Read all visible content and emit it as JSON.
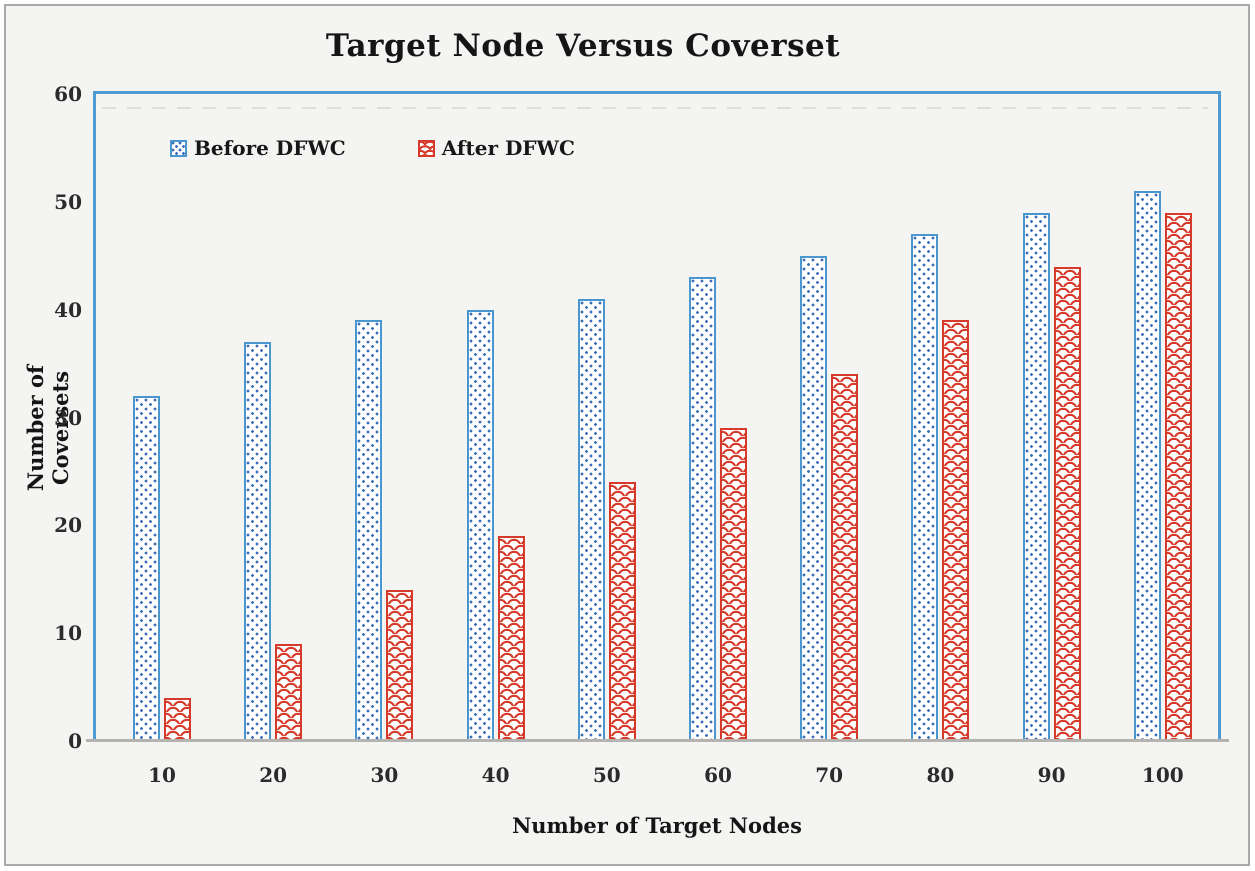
{
  "title": "Target Node Versus Coverset",
  "chart_data": {
    "type": "bar",
    "title": "Target Node Versus Coverset",
    "xlabel": "Number of Target Nodes",
    "ylabel": "Number of Coversets",
    "categories": [
      "10",
      "20",
      "30",
      "40",
      "50",
      "60",
      "70",
      "80",
      "90",
      "100"
    ],
    "series": [
      {
        "name": "Before DFWC",
        "values": [
          32,
          37,
          39,
          40,
          41,
          43,
          45,
          47,
          49,
          51
        ]
      },
      {
        "name": "After DFWC",
        "values": [
          4,
          9,
          14,
          19,
          24,
          29,
          34,
          39,
          44,
          49
        ]
      }
    ],
    "ylim": [
      0,
      60
    ],
    "ytick_step": 10,
    "grid": false,
    "legend_position": "top-left-inside"
  },
  "legend": {
    "items": [
      {
        "label": "Before DFWC",
        "swatch": "blue-dotted-square"
      },
      {
        "label": "After DFWC",
        "swatch": "red-scales-square"
      }
    ]
  },
  "colors": {
    "before_bar_border": "#4a97d0",
    "before_bar_dots": "#3b6cb8",
    "after_bar": "#d63a2b",
    "plot_frame": "#4e9ad3",
    "axis_line": "#b5b3b0",
    "text": "#151515",
    "page_background": "#f4f4f2",
    "outer_border": "#a9a9a9"
  }
}
